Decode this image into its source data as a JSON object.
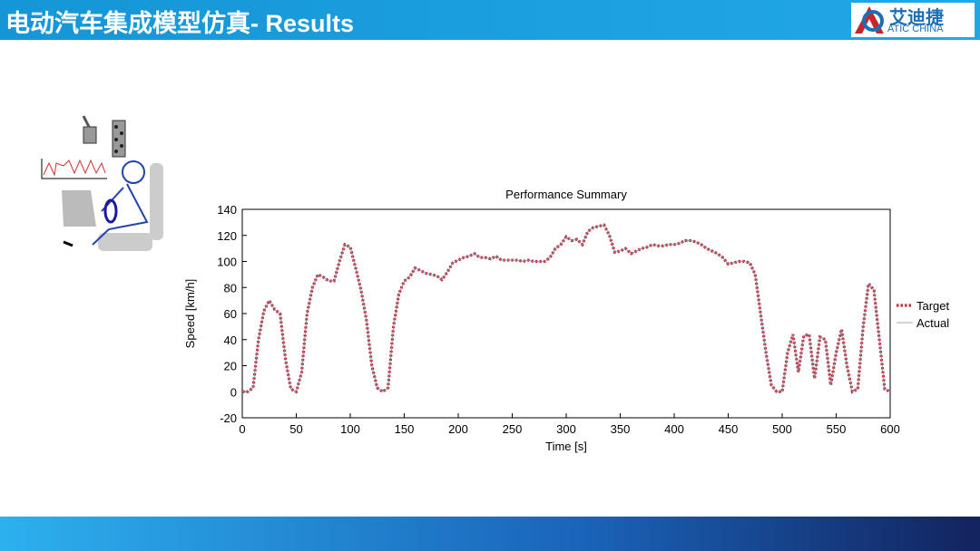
{
  "header": {
    "title": "电动汽车集成模型仿真- Results",
    "logo_cn": "艾迪捷",
    "logo_en": "ATIC CHINA"
  },
  "chart_data": {
    "type": "line",
    "title": "Performance Summary",
    "x_label": "Time [s]",
    "y_label": "Speed [km/h]",
    "x": [
      0,
      5,
      10,
      15,
      20,
      25,
      30,
      35,
      40,
      45,
      50,
      55,
      60,
      65,
      70,
      75,
      80,
      85,
      90,
      95,
      100,
      105,
      110,
      115,
      120,
      125,
      130,
      135,
      140,
      145,
      150,
      155,
      160,
      165,
      170,
      175,
      180,
      185,
      190,
      195,
      200,
      205,
      210,
      215,
      220,
      225,
      230,
      235,
      240,
      245,
      250,
      255,
      260,
      265,
      270,
      275,
      280,
      285,
      290,
      295,
      300,
      305,
      310,
      315,
      320,
      325,
      330,
      335,
      340,
      345,
      350,
      355,
      360,
      365,
      370,
      375,
      380,
      385,
      390,
      395,
      400,
      405,
      410,
      415,
      420,
      425,
      430,
      435,
      440,
      445,
      450,
      455,
      460,
      465,
      470,
      475,
      480,
      485,
      490,
      495,
      500,
      505,
      510,
      515,
      520,
      525,
      530,
      535,
      540,
      545,
      550,
      555,
      560,
      565,
      570,
      575,
      580,
      585,
      590,
      595,
      600
    ],
    "series": [
      {
        "name": "Target",
        "color": "#c0323c",
        "values": [
          0,
          0,
          3,
          40,
          62,
          70,
          63,
          60,
          25,
          2,
          0,
          15,
          60,
          80,
          90,
          88,
          85,
          85,
          100,
          113,
          111,
          95,
          78,
          55,
          20,
          3,
          0,
          3,
          50,
          75,
          85,
          88,
          95,
          93,
          91,
          90,
          89,
          86,
          92,
          99,
          101,
          103,
          104,
          106,
          103,
          103,
          102,
          104,
          101,
          101,
          101,
          101,
          100,
          101,
          100,
          100,
          100,
          103,
          110,
          113,
          119,
          116,
          117,
          113,
          123,
          126,
          127,
          128,
          120,
          107,
          108,
          110,
          106,
          108,
          110,
          111,
          113,
          112,
          112,
          113,
          113,
          114,
          116,
          116,
          115,
          113,
          110,
          108,
          106,
          103,
          98,
          99,
          100,
          100,
          99,
          90,
          60,
          30,
          5,
          0,
          0,
          30,
          44,
          15,
          43,
          44,
          10,
          42,
          40,
          5,
          30,
          48,
          20,
          0,
          2,
          50,
          83,
          78,
          40,
          2,
          0
        ]
      },
      {
        "name": "Actual",
        "color": "#8a8a9a",
        "values": [
          0,
          0,
          3,
          40,
          62,
          70,
          63,
          60,
          25,
          2,
          0,
          15,
          60,
          80,
          90,
          88,
          85,
          85,
          100,
          113,
          111,
          95,
          78,
          55,
          20,
          3,
          0,
          3,
          50,
          75,
          85,
          88,
          95,
          93,
          91,
          90,
          89,
          86,
          92,
          99,
          101,
          103,
          104,
          106,
          103,
          103,
          102,
          104,
          101,
          101,
          101,
          101,
          100,
          101,
          100,
          100,
          100,
          103,
          110,
          113,
          119,
          116,
          117,
          113,
          123,
          126,
          127,
          128,
          120,
          107,
          108,
          110,
          106,
          108,
          110,
          111,
          113,
          112,
          112,
          113,
          113,
          114,
          116,
          116,
          115,
          113,
          110,
          108,
          106,
          103,
          98,
          99,
          100,
          100,
          99,
          90,
          60,
          30,
          5,
          0,
          0,
          30,
          44,
          15,
          43,
          44,
          10,
          42,
          40,
          5,
          30,
          48,
          20,
          0,
          2,
          50,
          83,
          78,
          40,
          2,
          0
        ]
      }
    ],
    "xlim": [
      0,
      600
    ],
    "xticks": [
      0,
      50,
      100,
      150,
      200,
      250,
      300,
      350,
      400,
      450,
      500,
      550,
      600
    ],
    "ylim": [
      -20,
      140
    ],
    "yticks": [
      -20,
      0,
      20,
      40,
      60,
      80,
      100,
      120,
      140
    ],
    "legend": "right"
  }
}
